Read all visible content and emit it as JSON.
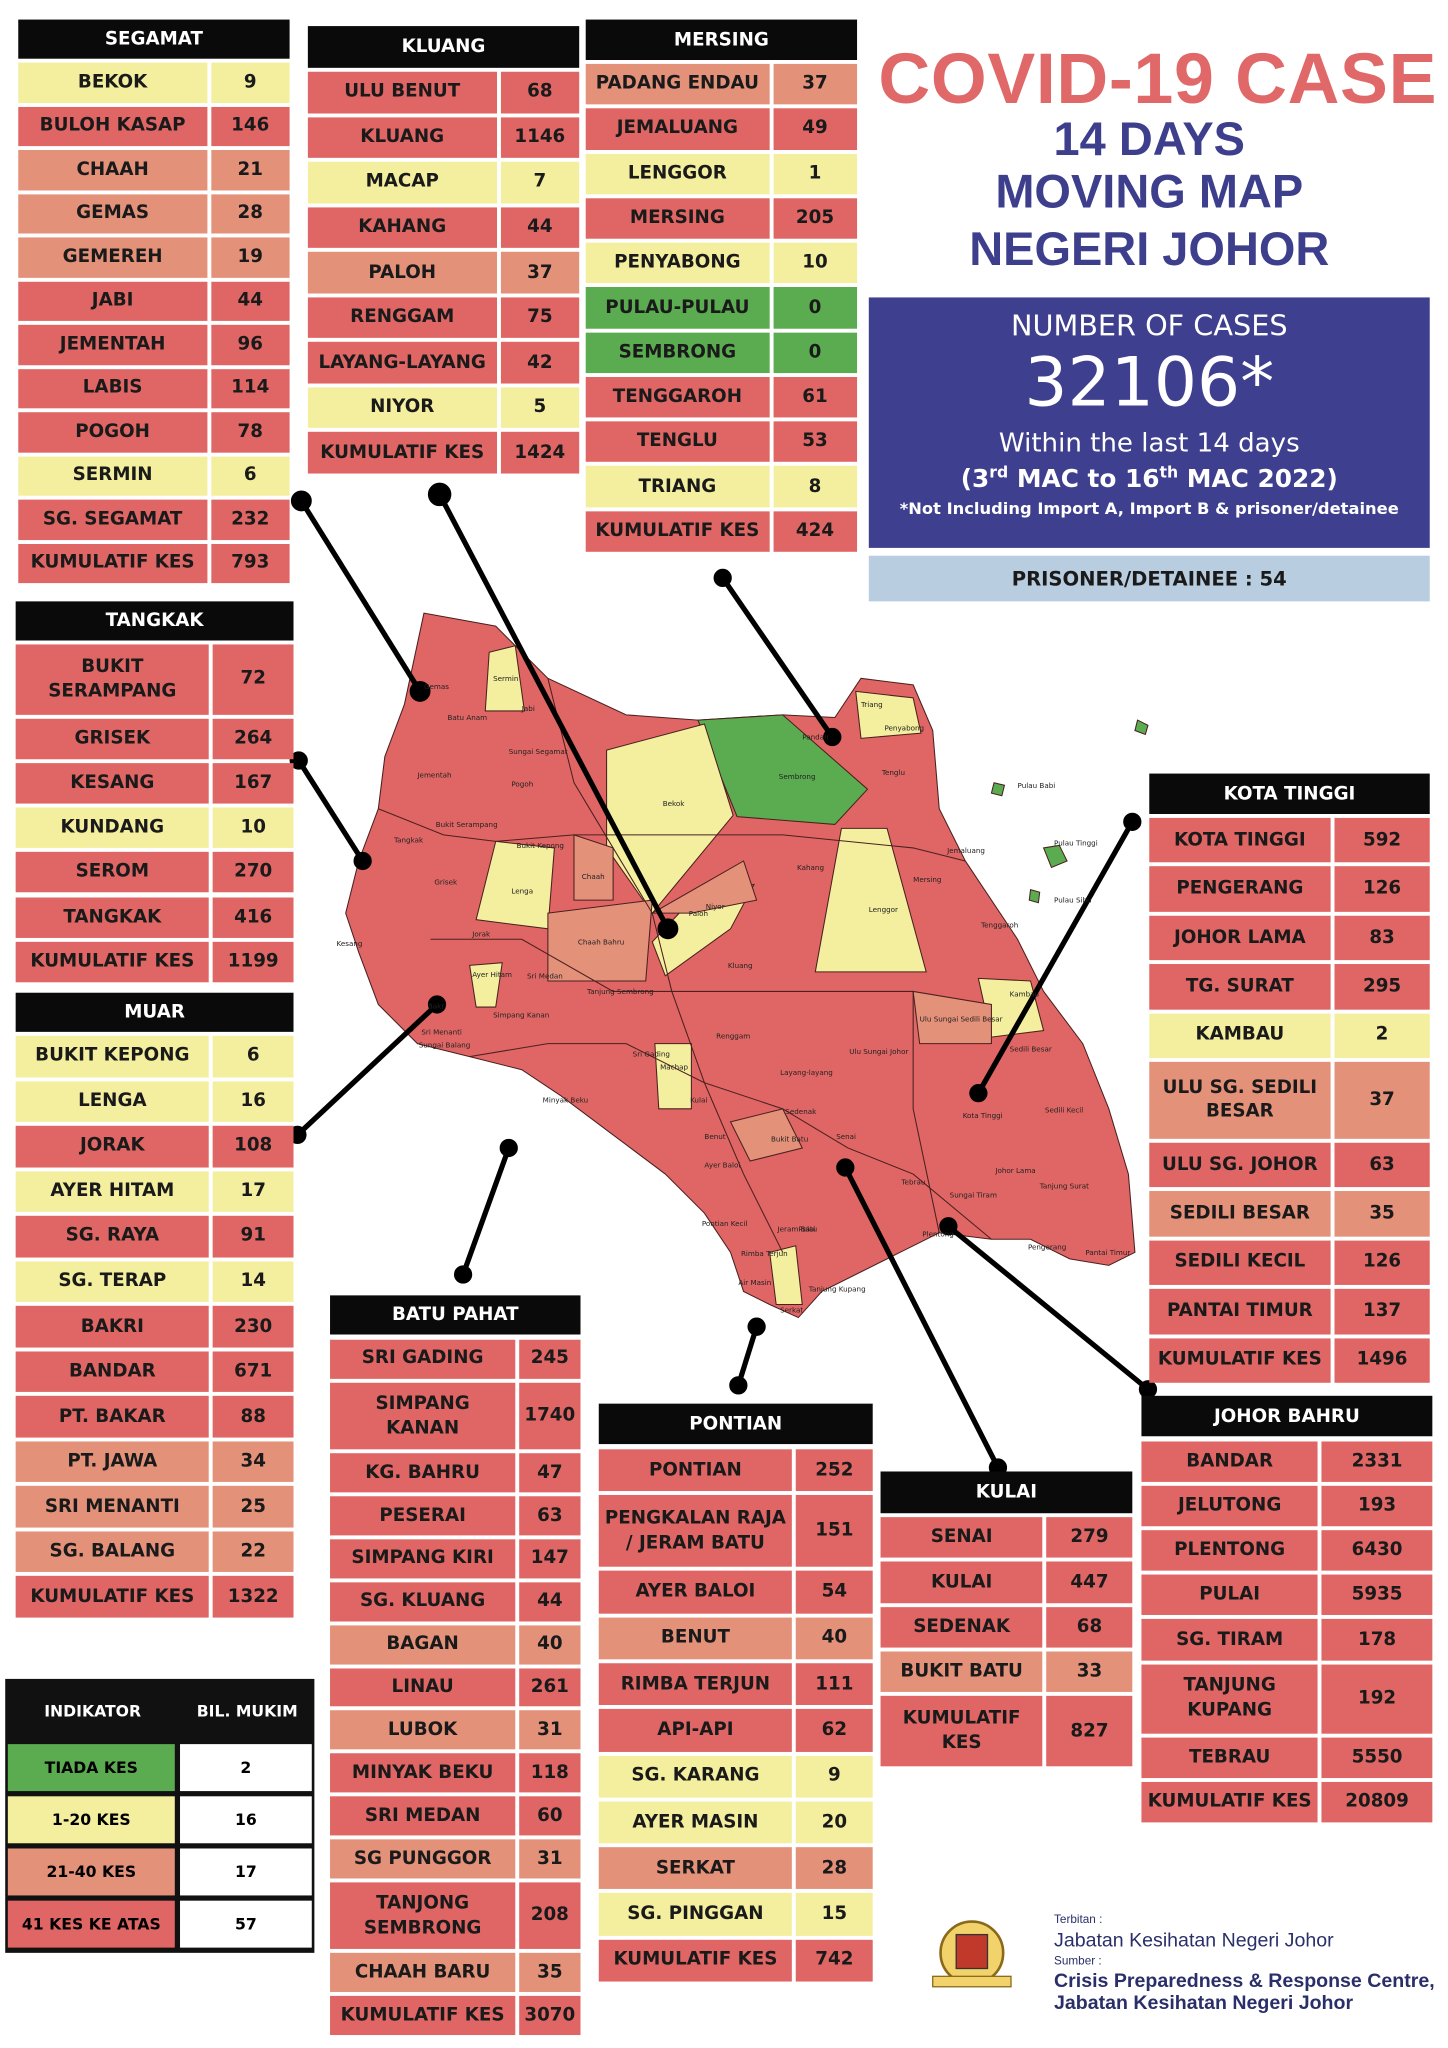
{
  "header": {
    "title": "COVID-19 CASE",
    "subtitle_lines": [
      "14 DAYS",
      "MOVING MAP",
      "NEGERI JOHOR"
    ]
  },
  "summary": {
    "label": "NUMBER OF CASES",
    "total": "32106*",
    "period": "Within the last 14 days",
    "range_parts": [
      "(3",
      "rd",
      " MAC to 16",
      "th",
      " MAC 2022)"
    ],
    "note": "*Not Including Import A, Import B & prisoner/detainee",
    "prisoner": "PRISONER/DETAINEE : 54"
  },
  "tables": [
    {
      "title": "SEGAMAT",
      "rows": [
        {
          "name": "BEKOK",
          "value": 9,
          "color": "#f3ef9e"
        },
        {
          "name": "BULOH KASAP",
          "value": 146,
          "color": "#df6664"
        },
        {
          "name": "CHAAH",
          "value": 21,
          "color": "#e4917a"
        },
        {
          "name": "GEMAS",
          "value": 28,
          "color": "#e4917a"
        },
        {
          "name": "GEMEREH",
          "value": 19,
          "color": "#e4917a"
        },
        {
          "name": "JABI",
          "value": 44,
          "color": "#df6664"
        },
        {
          "name": "JEMENTAH",
          "value": 96,
          "color": "#df6664"
        },
        {
          "name": "LABIS",
          "value": 114,
          "color": "#df6664"
        },
        {
          "name": "POGOH",
          "value": 78,
          "color": "#df6664"
        },
        {
          "name": "SERMIN",
          "value": 6,
          "color": "#f3ef9e"
        },
        {
          "name": "SG. SEGAMAT",
          "value": 232,
          "color": "#df6664"
        },
        {
          "name": "KUMULATIF KES",
          "value": 793,
          "color": "#df6664"
        }
      ]
    },
    {
      "title": "KLUANG",
      "rows": [
        {
          "name": "ULU BENUT",
          "value": 68,
          "color": "#df6664"
        },
        {
          "name": "KLUANG",
          "value": 1146,
          "color": "#df6664"
        },
        {
          "name": "MACAP",
          "value": 7,
          "color": "#f3ef9e"
        },
        {
          "name": "KAHANG",
          "value": 44,
          "color": "#df6664"
        },
        {
          "name": "PALOH",
          "value": 37,
          "color": "#e4917a"
        },
        {
          "name": "RENGGAM",
          "value": 75,
          "color": "#df6664"
        },
        {
          "name": "LAYANG-LAYANG",
          "value": 42,
          "color": "#df6664"
        },
        {
          "name": "NIYOR",
          "value": 5,
          "color": "#f3ef9e"
        },
        {
          "name": "KUMULATIF KES",
          "value": 1424,
          "color": "#df6664"
        }
      ]
    },
    {
      "title": "MERSING",
      "rows": [
        {
          "name": "PADANG ENDAU",
          "value": 37,
          "color": "#e4917a"
        },
        {
          "name": "JEMALUANG",
          "value": 49,
          "color": "#df6664"
        },
        {
          "name": "LENGGOR",
          "value": 1,
          "color": "#f3ef9e"
        },
        {
          "name": "MERSING",
          "value": 205,
          "color": "#df6664"
        },
        {
          "name": "PENYABONG",
          "value": 10,
          "color": "#f3ef9e"
        },
        {
          "name": "PULAU-PULAU",
          "value": 0,
          "color": "#5bab50"
        },
        {
          "name": "SEMBRONG",
          "value": 0,
          "color": "#5bab50"
        },
        {
          "name": "TENGGAROH",
          "value": 61,
          "color": "#df6664"
        },
        {
          "name": "TENGLU",
          "value": 53,
          "color": "#df6664"
        },
        {
          "name": "TRIANG",
          "value": 8,
          "color": "#f3ef9e"
        },
        {
          "name": "KUMULATIF KES",
          "value": 424,
          "color": "#df6664"
        }
      ]
    },
    {
      "title": "TANGKAK",
      "rows": [
        {
          "name": "BUKIT\nSERAMPANG",
          "value": 72,
          "color": "#df6664"
        },
        {
          "name": "GRISEK",
          "value": 264,
          "color": "#df6664"
        },
        {
          "name": "KESANG",
          "value": 167,
          "color": "#df6664"
        },
        {
          "name": "KUNDANG",
          "value": 10,
          "color": "#f3ef9e"
        },
        {
          "name": "SEROM",
          "value": 270,
          "color": "#df6664"
        },
        {
          "name": "TANGKAK",
          "value": 416,
          "color": "#df6664"
        },
        {
          "name": "KUMULATIF KES",
          "value": 1199,
          "color": "#df6664"
        }
      ]
    },
    {
      "title": "MUAR",
      "rows": [
        {
          "name": "BUKIT KEPONG",
          "value": 6,
          "color": "#f3ef9e"
        },
        {
          "name": "LENGA",
          "value": 16,
          "color": "#f3ef9e"
        },
        {
          "name": "JORAK",
          "value": 108,
          "color": "#df6664"
        },
        {
          "name": "AYER HITAM",
          "value": 17,
          "color": "#f3ef9e"
        },
        {
          "name": "SG. RAYA",
          "value": 91,
          "color": "#df6664"
        },
        {
          "name": "SG. TERAP",
          "value": 14,
          "color": "#f3ef9e"
        },
        {
          "name": "BAKRI",
          "value": 230,
          "color": "#df6664"
        },
        {
          "name": "BANDAR",
          "value": 671,
          "color": "#df6664"
        },
        {
          "name": "PT. BAKAR",
          "value": 88,
          "color": "#df6664"
        },
        {
          "name": "PT. JAWA",
          "value": 34,
          "color": "#e4917a"
        },
        {
          "name": "SRI MENANTI",
          "value": 25,
          "color": "#e4917a"
        },
        {
          "name": "SG. BALANG",
          "value": 22,
          "color": "#e4917a"
        },
        {
          "name": "KUMULATIF KES",
          "value": 1322,
          "color": "#df6664"
        }
      ]
    },
    {
      "title": "KOTA TINGGI",
      "rows": [
        {
          "name": "KOTA TINGGI",
          "value": 592,
          "color": "#df6664"
        },
        {
          "name": "PENGERANG",
          "value": 126,
          "color": "#df6664"
        },
        {
          "name": "JOHOR LAMA",
          "value": 83,
          "color": "#df6664"
        },
        {
          "name": "TG. SURAT",
          "value": 295,
          "color": "#df6664"
        },
        {
          "name": "KAMBAU",
          "value": 2,
          "color": "#f3ef9e"
        },
        {
          "name": "ULU SG. SEDILI\nBESAR",
          "value": 37,
          "color": "#e4917a"
        },
        {
          "name": "ULU  SG. JOHOR",
          "value": 63,
          "color": "#df6664"
        },
        {
          "name": "SEDILI BESAR",
          "value": 35,
          "color": "#e4917a"
        },
        {
          "name": "SEDILI KECIL",
          "value": 126,
          "color": "#df6664"
        },
        {
          "name": "PANTAI TIMUR",
          "value": 137,
          "color": "#df6664"
        },
        {
          "name": "KUMULATIF KES",
          "value": 1496,
          "color": "#df6664"
        }
      ]
    },
    {
      "title": "BATU PAHAT",
      "rows": [
        {
          "name": "SRI GADING",
          "value": 245,
          "color": "#df6664"
        },
        {
          "name": "SIMPANG\nKANAN",
          "value": 1740,
          "color": "#df6664"
        },
        {
          "name": "KG. BAHRU",
          "value": 47,
          "color": "#df6664"
        },
        {
          "name": "PESERAI",
          "value": 63,
          "color": "#df6664"
        },
        {
          "name": "SIMPANG KIRI",
          "value": 147,
          "color": "#df6664"
        },
        {
          "name": "SG. KLUANG",
          "value": 44,
          "color": "#df6664"
        },
        {
          "name": "BAGAN",
          "value": 40,
          "color": "#e4917a"
        },
        {
          "name": "LINAU",
          "value": 261,
          "color": "#df6664"
        },
        {
          "name": "LUBOK",
          "value": 31,
          "color": "#e4917a"
        },
        {
          "name": "MINYAK BEKU",
          "value": 118,
          "color": "#df6664"
        },
        {
          "name": "SRI MEDAN",
          "value": 60,
          "color": "#df6664"
        },
        {
          "name": "SG PUNGGOR",
          "value": 31,
          "color": "#e4917a"
        },
        {
          "name": "TANJONG\nSEMBRONG",
          "value": 208,
          "color": "#df6664"
        },
        {
          "name": "CHAAH BARU",
          "value": 35,
          "color": "#e4917a"
        },
        {
          "name": "KUMULATIF KES",
          "value": 3070,
          "color": "#df6664"
        }
      ]
    },
    {
      "title": "PONTIAN",
      "rows": [
        {
          "name": "PONTIAN",
          "value": 252,
          "color": "#df6664"
        },
        {
          "name": "PENGKALAN RAJA\n/ JERAM BATU",
          "value": 151,
          "color": "#df6664"
        },
        {
          "name": "AYER BALOI",
          "value": 54,
          "color": "#df6664"
        },
        {
          "name": "BENUT",
          "value": 40,
          "color": "#e4917a"
        },
        {
          "name": "RIMBA TERJUN",
          "value": 111,
          "color": "#df6664"
        },
        {
          "name": "API-API",
          "value": 62,
          "color": "#df6664"
        },
        {
          "name": "SG. KARANG",
          "value": 9,
          "color": "#f3ef9e"
        },
        {
          "name": "AYER MASIN",
          "value": 20,
          "color": "#f3ef9e"
        },
        {
          "name": "SERKAT",
          "value": 28,
          "color": "#e4917a"
        },
        {
          "name": "SG. PINGGAN",
          "value": 15,
          "color": "#f3ef9e"
        },
        {
          "name": "KUMULATIF KES",
          "value": 742,
          "color": "#df6664"
        }
      ]
    },
    {
      "title": "KULAI",
      "rows": [
        {
          "name": "SENAI",
          "value": 279,
          "color": "#df6664"
        },
        {
          "name": "KULAI",
          "value": 447,
          "color": "#df6664"
        },
        {
          "name": "SEDENAK",
          "value": 68,
          "color": "#df6664"
        },
        {
          "name": "BUKIT BATU",
          "value": 33,
          "color": "#e4917a"
        },
        {
          "name": "KUMULATIF\nKES",
          "value": 827,
          "color": "#df6664"
        }
      ]
    },
    {
      "title": "JOHOR BAHRU",
      "rows": [
        {
          "name": "BANDAR",
          "value": 2331,
          "color": "#df6664"
        },
        {
          "name": "JELUTONG",
          "value": 193,
          "color": "#df6664"
        },
        {
          "name": "PLENTONG",
          "value": 6430,
          "color": "#df6664"
        },
        {
          "name": "PULAI",
          "value": 5935,
          "color": "#df6664"
        },
        {
          "name": "SG. TIRAM",
          "value": 178,
          "color": "#df6664"
        },
        {
          "name": "TANJUNG\nKUPANG",
          "value": 192,
          "color": "#df6664"
        },
        {
          "name": "TEBRAU",
          "value": 5550,
          "color": "#df6664"
        },
        {
          "name": "KUMULATIF KES",
          "value": 20809,
          "color": "#df6664"
        }
      ]
    }
  ],
  "legend": {
    "headers": [
      "INDIKATOR",
      "BIL. MUKIM"
    ],
    "items": [
      {
        "label": "TIADA KES",
        "count": 2,
        "color": "#5bab50"
      },
      {
        "label": "1-20 KES",
        "count": 16,
        "color": "#f3ef9e"
      },
      {
        "label": "21-40 KES",
        "count": 17,
        "color": "#e4917a"
      },
      {
        "label": "41 KES KE ATAS",
        "count": 57,
        "color": "#df6664"
      }
    ]
  },
  "map_labels": [
    "Gemas",
    "Batu Anam",
    "Sermin",
    "Jabi",
    "Sungai Segamat",
    "Pogoh",
    "Jementah",
    "Bukit Serampang",
    "Tangkak",
    "Grisek",
    "Bukit Kepong",
    "Lenga",
    "Bekok",
    "Sembrong",
    "Pandan",
    "Triang",
    "Penyabong",
    "Tenglu",
    "Pulau Babi",
    "Pulau Tinggi",
    "Pulau Sibu",
    "Jemaluang",
    "Mersing",
    "Tenggaroh",
    "Kahang",
    "Chaah",
    "Paloh",
    "Niyor",
    "Lenggor",
    "Jorak",
    "Chaah Bahru",
    "Sri Medan",
    "Ayer Hitam",
    "Kluang",
    "Tanjung Sembrong",
    "Renggam",
    "Machap",
    "Ulu Sungai Johor",
    "Ulu Sungai Sedili Besar",
    "Kambau",
    "Sedili Besar",
    "Sedili Kecil",
    "Kota Tinggi",
    "Layang-layang",
    "Sedenak",
    "Senai",
    "Kulai",
    "Bukit Batu",
    "Johor Lama",
    "Tanjung Surat",
    "Tebrau",
    "Sungai Tiram",
    "Plentong",
    "Pengerang",
    "Pantai Timur",
    "Pontian Kecil",
    "Jeram Batu",
    "Rimba Terjun",
    "Pulai",
    "Air Masin",
    "Serkat",
    "Tanjung Kupang",
    "Ayer Baloi",
    "Benut",
    "Sungai Balang",
    "Sri Menanti",
    "Bakri",
    "Kesang",
    "Simpang Kanan",
    "Minyak Beku",
    "Sri Gading"
  ],
  "footer": {
    "publisher_label": "Terbitan :",
    "publisher": "Jabatan Kesihatan Negeri Johor",
    "source_label": "Sumber :",
    "source_lines": [
      "Crisis Preparedness & Response Centre,",
      "Jabatan Kesihatan Negeri Johor"
    ]
  }
}
